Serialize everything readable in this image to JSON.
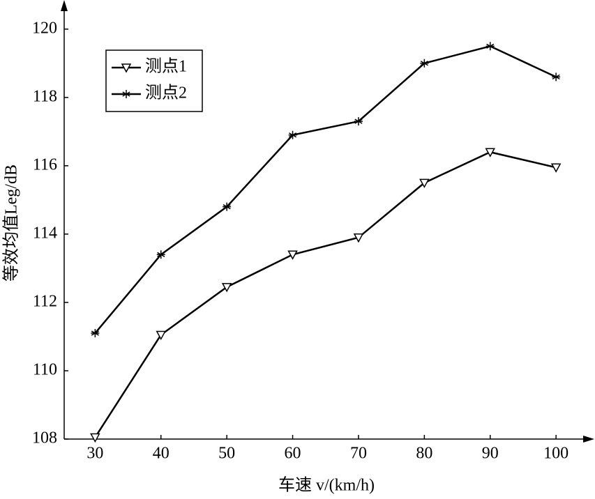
{
  "chart_data": {
    "type": "line",
    "xlabel": "车速 v/(km/h)",
    "ylabel": "等效均值Leg/dB",
    "x": [
      30,
      40,
      50,
      60,
      70,
      80,
      90,
      100
    ],
    "xlim": [
      25.3,
      105.6
    ],
    "xticks": [
      30,
      40,
      50,
      60,
      70,
      80,
      90,
      100
    ],
    "ylim": [
      108,
      120.75
    ],
    "yticks": [
      108,
      110,
      112,
      114,
      116,
      118,
      120
    ],
    "legend": "upper left",
    "series": [
      {
        "name": "测点1",
        "color": "#000000",
        "marker": "triangle-down",
        "values": [
          108.05,
          111.05,
          112.45,
          113.4,
          113.9,
          115.5,
          116.4,
          115.95
        ]
      },
      {
        "name": "测点2",
        "color": "#000000",
        "marker": "asterisk",
        "values": [
          111.1,
          113.4,
          114.8,
          116.9,
          117.3,
          119.0,
          119.5,
          118.6
        ]
      }
    ]
  }
}
